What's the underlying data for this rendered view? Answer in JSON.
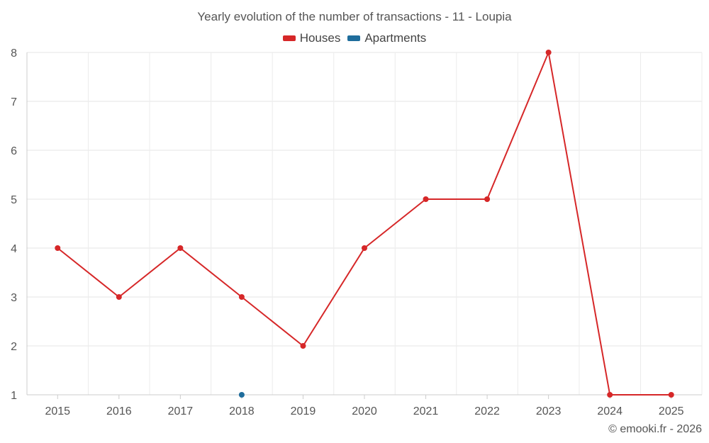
{
  "chart_data": {
    "type": "line",
    "title": "Yearly evolution of the number of transactions - 11 - Loupia",
    "categories": [
      "2015",
      "2016",
      "2017",
      "2018",
      "2019",
      "2020",
      "2021",
      "2022",
      "2023",
      "2024",
      "2025"
    ],
    "series": [
      {
        "name": "Houses",
        "color": "#d62728",
        "values": [
          4,
          3,
          4,
          3,
          2,
          4,
          5,
          5,
          8,
          1,
          1
        ]
      },
      {
        "name": "Apartments",
        "color": "#1f6d9c",
        "values": [
          null,
          null,
          null,
          1,
          null,
          null,
          null,
          null,
          null,
          null,
          null
        ]
      }
    ],
    "yticks": [
      "1",
      "2",
      "3",
      "4",
      "5",
      "6",
      "7",
      "8"
    ],
    "ylim": [
      1,
      8
    ],
    "xlabel": "",
    "ylabel": "",
    "grid": true,
    "legend_position": "top-center"
  },
  "credit": "© emooki.fr - 2026"
}
